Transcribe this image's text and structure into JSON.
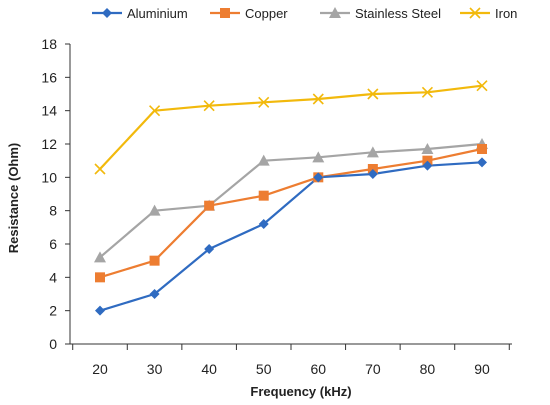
{
  "chart_data": {
    "type": "line",
    "x": [
      20,
      30,
      40,
      50,
      60,
      70,
      80,
      90
    ],
    "series": [
      {
        "name": "Aluminium",
        "color": "#2F6BC1",
        "marker": "diamond",
        "values": [
          2,
          3,
          5.7,
          7.2,
          10,
          10.2,
          10.7,
          10.9
        ]
      },
      {
        "name": "Copper",
        "color": "#ED7D31",
        "marker": "square",
        "values": [
          4,
          5,
          8.3,
          8.9,
          10,
          10.5,
          11,
          11.7
        ]
      },
      {
        "name": "Stainless Steel",
        "color": "#A5A5A5",
        "marker": "triangle",
        "values": [
          5.2,
          8,
          8.3,
          11,
          11.2,
          11.5,
          11.7,
          12
        ]
      },
      {
        "name": "Iron",
        "color": "#F2B90C",
        "marker": "x",
        "values": [
          10.5,
          14,
          14.3,
          14.5,
          14.7,
          15,
          15.1,
          15.5
        ]
      }
    ],
    "xlabel": "Frequency (kHz)",
    "ylabel": "Resistance (Ohm)",
    "ylim": [
      0,
      18
    ],
    "yticks": [
      0,
      2,
      4,
      6,
      8,
      10,
      12,
      14,
      16,
      18
    ],
    "xticks": [
      20,
      30,
      40,
      50,
      60,
      70,
      80,
      90
    ],
    "grid": false,
    "legend_position": "top"
  }
}
